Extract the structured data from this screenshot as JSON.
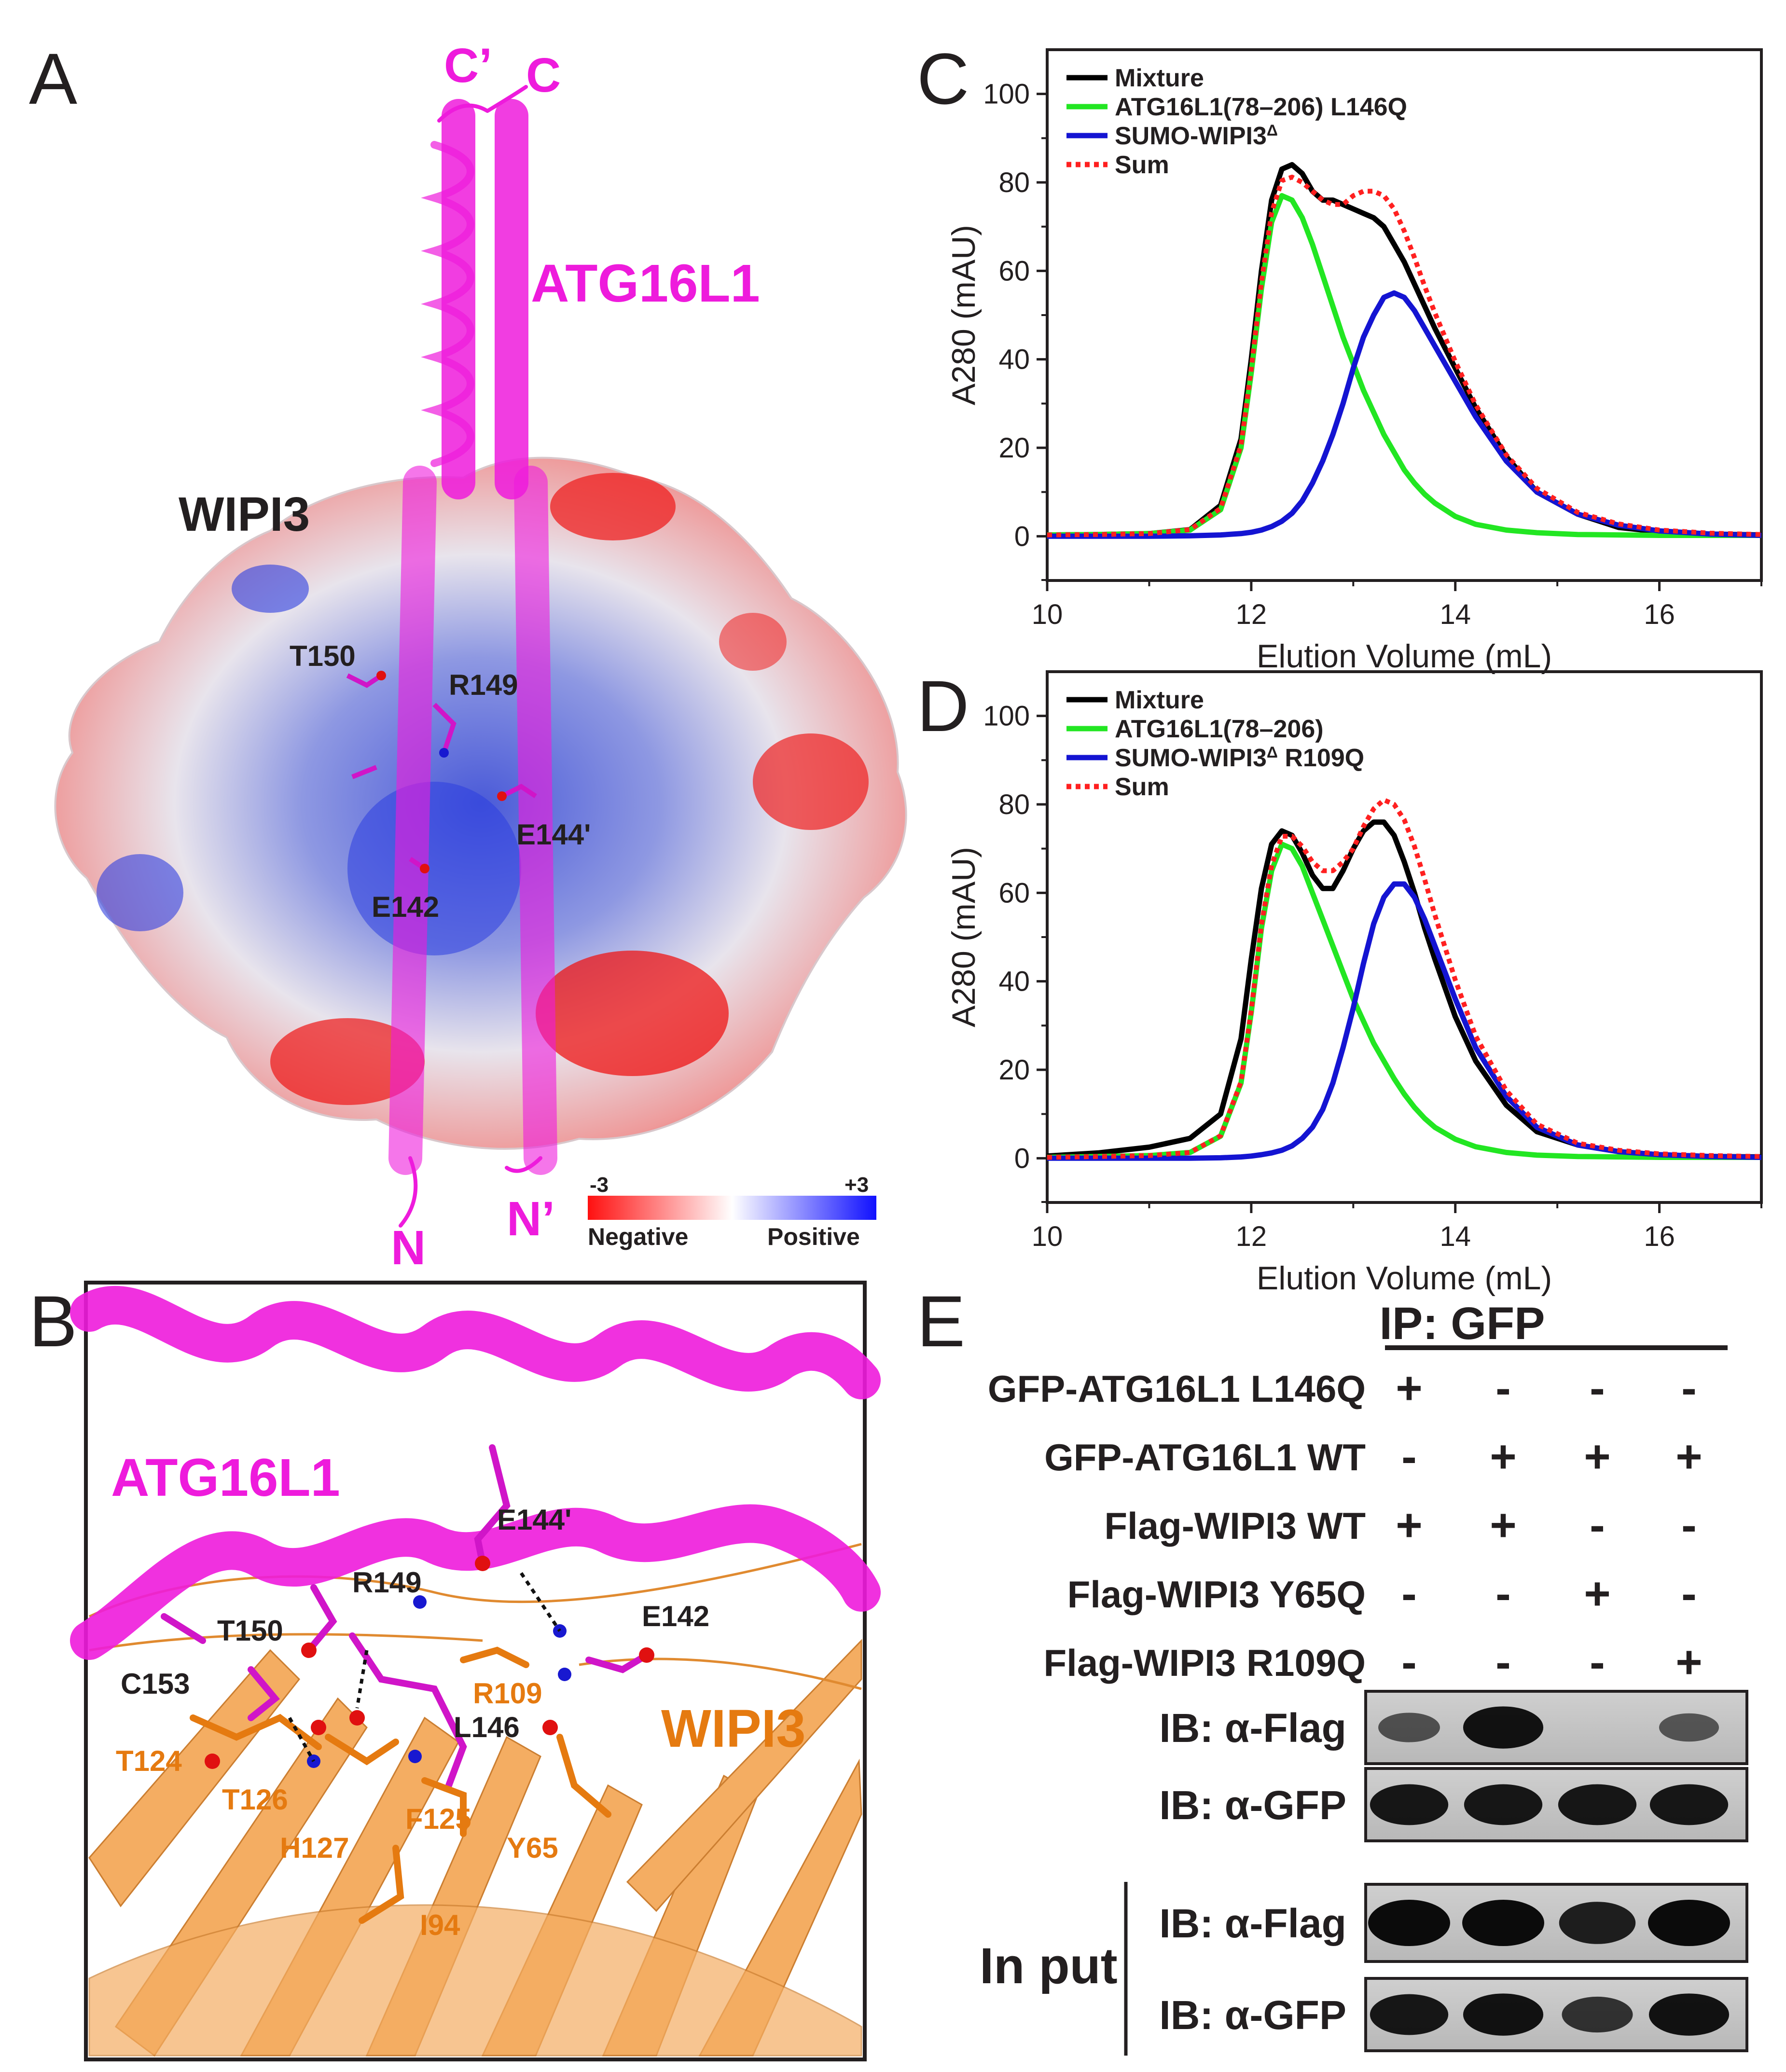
{
  "panels": {
    "A": {
      "letter": "A",
      "labels": {
        "c_prime": "C’",
        "c": "C",
        "atg16l1": "ATG16L1",
        "wipi3": "WIPI3",
        "t150": "T150",
        "r149": "R149",
        "e144": "E144'",
        "e142": "E142",
        "n": "N",
        "n_prime": "N’"
      },
      "scale": {
        "min_label": "-3",
        "max_label": "+3",
        "negative": "Negative",
        "positive": "Positive"
      }
    },
    "B": {
      "letter": "B",
      "labels": {
        "atg16l1": "ATG16L1",
        "wipi3": "WIPI3",
        "e144": "E144'",
        "r149": "R149",
        "e142": "E142",
        "t150": "T150",
        "c153": "C153",
        "r109": "R109",
        "l146": "L146",
        "t124": "T124",
        "t126": "T126",
        "h127": "H127",
        "f125": "F125",
        "y65": "Y65",
        "i94": "I94"
      }
    },
    "C": {
      "letter": "C"
    },
    "D": {
      "letter": "D"
    },
    "E": {
      "letter": "E",
      "ip_header": "IP: GFP",
      "rows": [
        {
          "label": "GFP-ATG16L1 L146Q",
          "marks": [
            "+",
            "-",
            "-",
            "-"
          ]
        },
        {
          "label": "GFP-ATG16L1 WT",
          "marks": [
            "-",
            "+",
            "+",
            "+"
          ]
        },
        {
          "label": "Flag-WIPI3 WT",
          "marks": [
            "+",
            "+",
            "-",
            "-"
          ]
        },
        {
          "label": "Flag-WIPI3 Y65Q",
          "marks": [
            "-",
            "-",
            "+",
            "-"
          ]
        },
        {
          "label": "Flag-WIPI3 R109Q",
          "marks": [
            "-",
            "-",
            "-",
            "+"
          ]
        }
      ],
      "blots": [
        {
          "label": "IB: α-Flag",
          "intensity": [
            0.45,
            0.95,
            0.0,
            0.4
          ]
        },
        {
          "label": "IB: α-GFP",
          "intensity": [
            0.9,
            0.9,
            0.9,
            0.9
          ]
        }
      ],
      "input_label": "In put",
      "input_blots": [
        {
          "label": "IB: α-Flag",
          "intensity": [
            1.0,
            1.0,
            0.85,
            1.0
          ]
        },
        {
          "label": "IB: α-GFP",
          "intensity": [
            0.9,
            0.95,
            0.7,
            0.95
          ]
        }
      ]
    }
  },
  "colors": {
    "magenta": "#ee1bdc",
    "orange": "#e57a10",
    "mixture": "#000000",
    "atg": "#22e622",
    "sumo": "#1414d2",
    "sum": "#ff2020"
  },
  "chart_data": [
    {
      "type": "line",
      "panel": "C",
      "xlabel": "Elution Volume (mL)",
      "ylabel": "A280 (mAU)",
      "xlim": [
        10,
        17
      ],
      "ylim": [
        -10,
        110
      ],
      "xticks": [
        10,
        12,
        14,
        16
      ],
      "yticks": [
        0,
        20,
        40,
        60,
        80,
        100
      ],
      "legend_position": "top-left",
      "x": [
        10,
        10.5,
        11,
        11.4,
        11.7,
        11.9,
        12.0,
        12.1,
        12.2,
        12.3,
        12.4,
        12.5,
        12.6,
        12.7,
        12.8,
        12.9,
        13.0,
        13.1,
        13.2,
        13.3,
        13.4,
        13.5,
        13.6,
        13.7,
        13.8,
        14.0,
        14.2,
        14.5,
        14.8,
        15.2,
        15.6,
        16.0,
        16.5,
        17
      ],
      "series": [
        {
          "name": "Mixture",
          "color": "#000000",
          "style": "solid",
          "values": [
            0.3,
            0.4,
            0.6,
            1.5,
            7,
            22,
            40,
            60,
            76,
            83,
            84,
            82,
            78,
            76,
            76,
            75,
            74,
            73,
            72,
            70,
            66,
            62,
            57,
            52,
            47,
            38,
            29,
            18,
            10,
            5,
            2,
            1,
            0.5,
            0.3
          ]
        },
        {
          "name": "ATG16L1(78–206) L146Q",
          "color": "#22e622",
          "style": "solid",
          "values": [
            0.3,
            0.4,
            0.6,
            1.4,
            6,
            20,
            37,
            56,
            71,
            77,
            76,
            72,
            66,
            59,
            52,
            45,
            39,
            33,
            28,
            23,
            19,
            15,
            12,
            9.5,
            7.5,
            4.5,
            2.7,
            1.4,
            0.8,
            0.4,
            0.3,
            0.2,
            0.2,
            0.2
          ]
        },
        {
          "name": "SUMO-WIPI3^Δ",
          "color": "#1414d2",
          "style": "solid",
          "values": [
            0,
            0,
            0,
            0.1,
            0.3,
            0.6,
            0.9,
            1.4,
            2.2,
            3.4,
            5.2,
            8,
            12,
            17,
            23,
            30,
            38,
            45,
            50,
            54,
            55,
            54,
            51,
            47,
            43,
            35,
            27,
            17,
            10,
            5,
            2.5,
            1.2,
            0.5,
            0.2
          ]
        },
        {
          "name": "Sum",
          "color": "#ff2020",
          "style": "dotted",
          "values": [
            0.3,
            0.4,
            0.6,
            1.5,
            6.3,
            20.6,
            37.9,
            57.4,
            73.2,
            80.4,
            81.2,
            80,
            78,
            76,
            75,
            75,
            77,
            78,
            78,
            77,
            74,
            69,
            63,
            56.5,
            50.5,
            39.5,
            29.7,
            18.4,
            10.8,
            5.4,
            2.8,
            1.4,
            0.7,
            0.4
          ]
        }
      ]
    },
    {
      "type": "line",
      "panel": "D",
      "xlabel": "Elution Volume (mL)",
      "ylabel": "A280 (mAU)",
      "xlim": [
        10,
        17
      ],
      "ylim": [
        -10,
        110
      ],
      "xticks": [
        10,
        12,
        14,
        16
      ],
      "yticks": [
        0,
        20,
        40,
        60,
        80,
        100
      ],
      "legend_position": "top-left",
      "x": [
        10,
        10.5,
        11,
        11.4,
        11.7,
        11.9,
        12.0,
        12.1,
        12.2,
        12.3,
        12.4,
        12.5,
        12.6,
        12.7,
        12.8,
        12.9,
        13.0,
        13.1,
        13.2,
        13.3,
        13.4,
        13.5,
        13.6,
        13.7,
        13.8,
        14.0,
        14.2,
        14.5,
        14.8,
        15.2,
        15.6,
        16.0,
        16.5,
        17
      ],
      "series": [
        {
          "name": "Mixture",
          "color": "#000000",
          "style": "solid",
          "values": [
            0.5,
            1.2,
            2.5,
            4.5,
            10,
            27,
            45,
            61,
            71,
            74,
            73,
            69,
            64,
            61,
            61,
            65,
            70,
            74,
            76,
            76,
            73,
            67,
            60,
            52,
            45,
            32,
            22,
            12,
            6,
            3,
            1.5,
            0.8,
            0.4,
            0.3
          ]
        },
        {
          "name": "ATG16L1(78–206)",
          "color": "#22e622",
          "style": "solid",
          "values": [
            0.2,
            0.4,
            0.6,
            1.3,
            5,
            17,
            33,
            52,
            65,
            71,
            70,
            66,
            60,
            54,
            48,
            42,
            36,
            31,
            26,
            22,
            18,
            14.5,
            11.5,
            9,
            7,
            4.3,
            2.6,
            1.3,
            0.7,
            0.4,
            0.3,
            0.2,
            0.2,
            0.2
          ]
        },
        {
          "name": "SUMO-WIPI3^Δ R109Q",
          "color": "#1414d2",
          "style": "solid",
          "values": [
            0,
            0,
            0,
            0,
            0.1,
            0.3,
            0.5,
            0.8,
            1.2,
            1.8,
            2.8,
            4.5,
            7,
            11,
            17,
            25,
            34,
            44,
            53,
            59,
            62,
            62,
            59,
            54,
            48,
            36,
            25,
            14,
            7,
            3,
            1.5,
            0.8,
            0.4,
            0.2
          ]
        },
        {
          "name": "Sum",
          "color": "#ff2020",
          "style": "dotted",
          "values": [
            0.2,
            0.4,
            0.6,
            1.3,
            5.1,
            17.3,
            33.5,
            52.8,
            66.2,
            72.8,
            72.8,
            70.5,
            67,
            65,
            65,
            67,
            70,
            75,
            79,
            81,
            80,
            76.5,
            70.5,
            63,
            55,
            40.3,
            27.6,
            15.3,
            7.7,
            3.4,
            1.8,
            1,
            0.6,
            0.4
          ]
        }
      ]
    }
  ]
}
